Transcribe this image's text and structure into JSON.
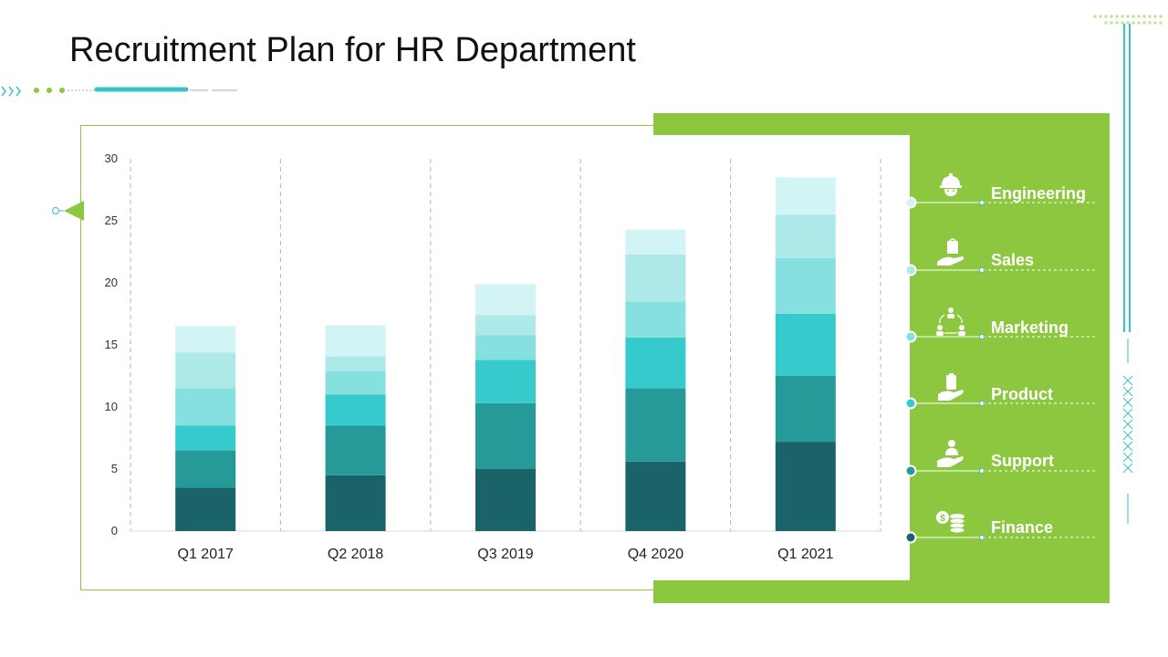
{
  "title": "Recruitment Plan for HR Department",
  "colors": {
    "accent_green": "#8dc63f",
    "teal_accent": "#36c3c9",
    "series": [
      "#1a6469",
      "#269a98",
      "#36cacc",
      "#86e0e0",
      "#aee9ea",
      "#d3f4f5"
    ]
  },
  "legend": [
    {
      "label": "Engineering",
      "icon": "worker-helmet-icon"
    },
    {
      "label": "Sales",
      "icon": "shopping-bag-hand-icon"
    },
    {
      "label": "Marketing",
      "icon": "team-network-icon"
    },
    {
      "label": "Product",
      "icon": "box-hand-icon"
    },
    {
      "label": "Support",
      "icon": "support-person-hand-icon"
    },
    {
      "label": "Finance",
      "icon": "coins-icon"
    }
  ],
  "chart_data": {
    "type": "bar",
    "stacked": true,
    "categories": [
      "Q1 2017",
      "Q2 2018",
      "Q3 2019",
      "Q4 2020",
      "Q1 2021"
    ],
    "yticks": [
      0,
      5,
      10,
      15,
      20,
      25,
      30
    ],
    "ylim": [
      0,
      30
    ],
    "grid": "vertical-dashed",
    "legend_position": "right",
    "series": [
      {
        "name": "Finance",
        "values": [
          3.5,
          4.5,
          5.0,
          5.6,
          7.2
        ]
      },
      {
        "name": "Support",
        "values": [
          3.0,
          4.0,
          5.3,
          5.9,
          5.3
        ]
      },
      {
        "name": "Product",
        "values": [
          2.0,
          2.5,
          3.5,
          4.1,
          5.0
        ]
      },
      {
        "name": "Marketing",
        "values": [
          3.0,
          1.9,
          2.0,
          2.9,
          4.5
        ]
      },
      {
        "name": "Sales",
        "values": [
          2.9,
          1.2,
          1.6,
          3.8,
          3.5
        ]
      },
      {
        "name": "Engineering",
        "values": [
          2.1,
          2.5,
          2.5,
          2.0,
          3.0
        ]
      }
    ]
  }
}
